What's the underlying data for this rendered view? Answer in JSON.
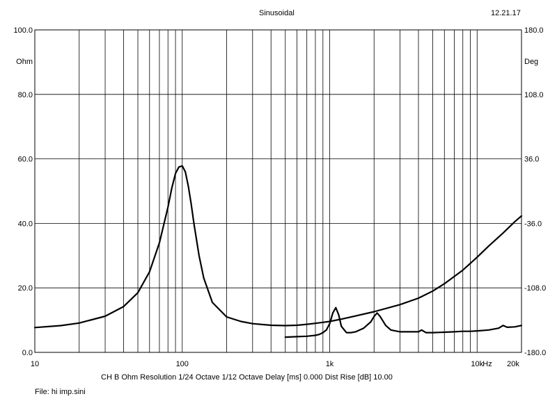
{
  "header": {
    "title": "Sinusoidal",
    "date": "12.21.17"
  },
  "footer": {
    "settings": "CH B   Ohm   Resolution 1/24 Octave   1/12 Octave   Delay [ms] 0.000   Dist Rise [dB] 10.00",
    "file": "File: hi imp.sini"
  },
  "chart_data": {
    "type": "line",
    "x_scale": "log",
    "xlim": [
      10,
      20000
    ],
    "x_ticks": [
      {
        "value": 10,
        "label": "10"
      },
      {
        "value": 100,
        "label": "100"
      },
      {
        "value": 1000,
        "label": "1k"
      },
      {
        "value": 10000,
        "label": "10k"
      },
      {
        "value": 20000,
        "label": "20k"
      }
    ],
    "x_unit": "Hz",
    "ylim_left": [
      0,
      100
    ],
    "ylabel_left": "Ohm",
    "y_ticks_left": [
      "0.0",
      "20.0",
      "40.0",
      "60.0",
      "80.0",
      "100.0"
    ],
    "ylim_right": [
      -180,
      180
    ],
    "ylabel_right": "Deg",
    "y_ticks_right": [
      "-180.0",
      "-108.0",
      "-36.0",
      "36.0",
      "108.0",
      "180.0"
    ],
    "grid": true,
    "series": [
      {
        "axis": "left",
        "x": [
          10,
          15,
          20,
          30,
          40,
          50,
          60,
          70,
          80,
          85,
          90,
          95,
          100,
          105,
          110,
          115,
          120,
          130,
          140,
          160,
          200,
          250,
          300,
          400,
          500,
          600,
          700,
          800,
          900,
          1000,
          1200,
          1500,
          2000,
          3000,
          4000,
          5000,
          6000,
          8000,
          10000,
          12000,
          15000,
          18000,
          20000
        ],
        "y": [
          7.7,
          8.3,
          9.1,
          11.2,
          14.2,
          18.5,
          25.0,
          34.0,
          45.0,
          51.0,
          55.5,
          57.5,
          57.8,
          56.0,
          51.5,
          46.0,
          40.0,
          30.0,
          23.0,
          15.5,
          11.0,
          9.6,
          8.9,
          8.4,
          8.3,
          8.4,
          8.7,
          9.0,
          9.3,
          9.6,
          10.3,
          11.3,
          12.6,
          14.8,
          16.8,
          19.0,
          21.3,
          25.5,
          29.5,
          33.0,
          37.0,
          40.5,
          42.3
        ]
      },
      {
        "axis": "right",
        "x": [
          500,
          600,
          700,
          800,
          850,
          900,
          950,
          1000,
          1050,
          1100,
          1150,
          1200,
          1300,
          1400,
          1500,
          1700,
          1900,
          2000,
          2100,
          2200,
          2400,
          2600,
          3000,
          3500,
          4000,
          4200,
          4500,
          5000,
          6000,
          7000,
          8000,
          9000,
          10000,
          12000,
          14000,
          15000,
          16000,
          18000,
          20000
        ],
        "y": [
          -163.0,
          -162.5,
          -162.0,
          -161.0,
          -160.0,
          -158.0,
          -155.0,
          -148.0,
          -136.0,
          -130.0,
          -138.0,
          -151.0,
          -158.0,
          -158.0,
          -157.0,
          -153.0,
          -146.0,
          -140.0,
          -136.0,
          -140.0,
          -150.0,
          -155.0,
          -157.0,
          -157.0,
          -157.0,
          -155.0,
          -158.0,
          -158.0,
          -157.5,
          -157.0,
          -156.5,
          -156.5,
          -156.0,
          -155.0,
          -153.0,
          -150.0,
          -152.0,
          -151.5,
          -150.0
        ]
      }
    ]
  }
}
